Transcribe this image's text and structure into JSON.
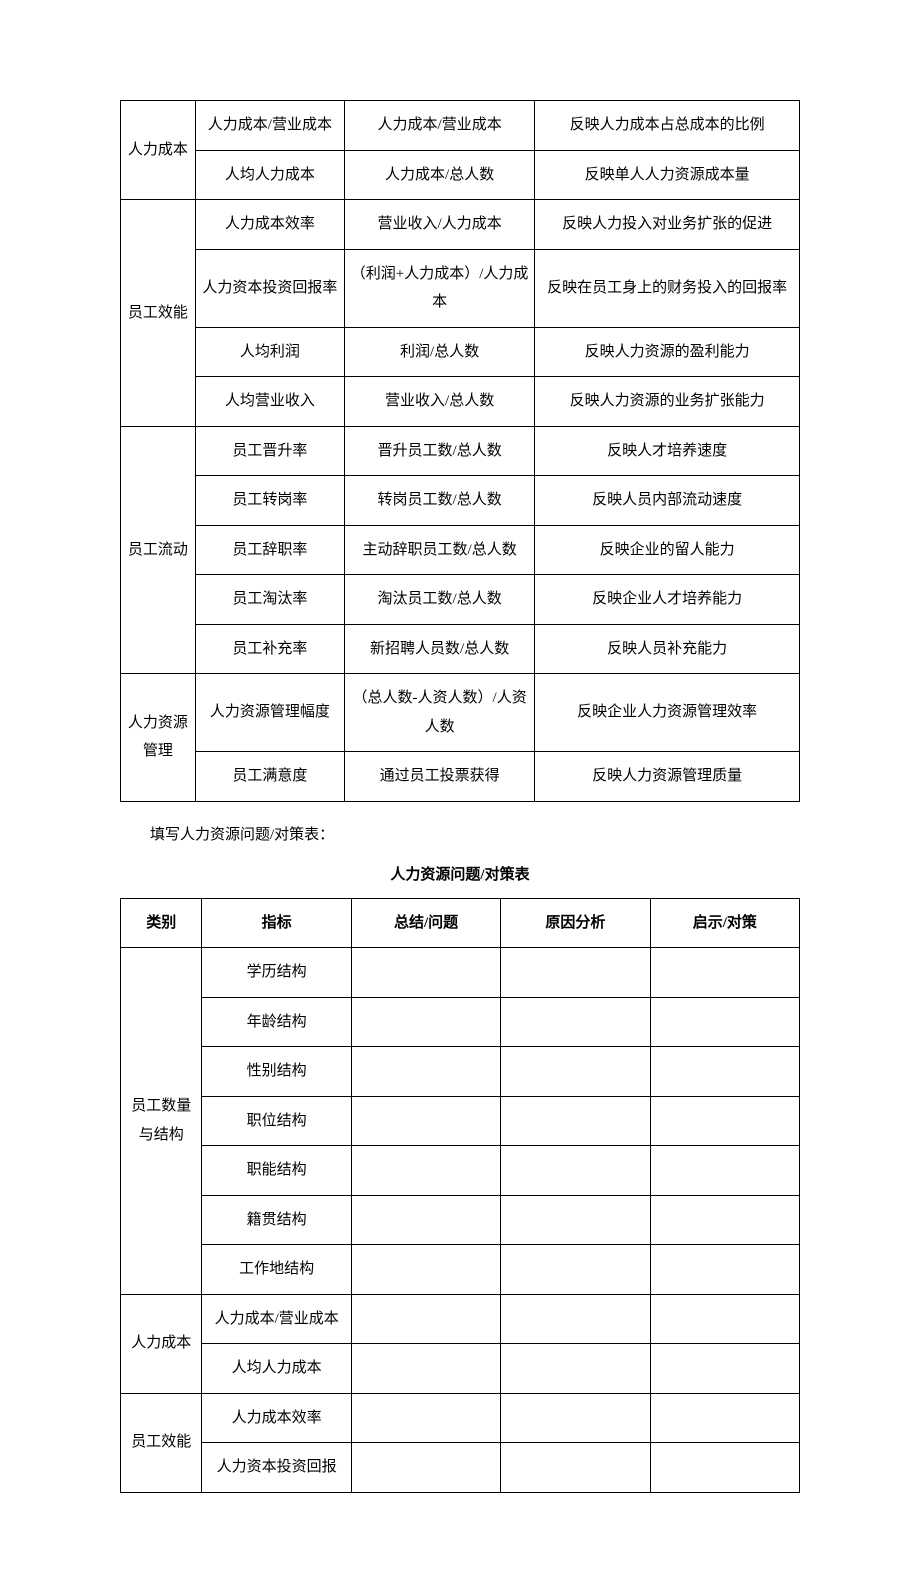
{
  "table1": {
    "rows": [
      {
        "cat": "人力成本",
        "catRowspan": 2,
        "ind": "人力成本/营业成本",
        "formula": "人力成本/营业成本",
        "desc": "反映人力成本占总成本的比例"
      },
      {
        "ind": "人均人力成本",
        "formula": "人力成本/总人数",
        "desc": "反映单人人力资源成本量"
      },
      {
        "cat": "员工效能",
        "catRowspan": 4,
        "ind": "人力成本效率",
        "formula": "营业收入/人力成本",
        "desc": "反映人力投入对业务扩张的促进"
      },
      {
        "ind": "人力资本投资回报率",
        "formula": "（利润+人力成本）/人力成本",
        "desc": "反映在员工身上的财务投入的回报率"
      },
      {
        "ind": "人均利润",
        "formula": "利润/总人数",
        "desc": "反映人力资源的盈利能力"
      },
      {
        "ind": "人均营业收入",
        "formula": "营业收入/总人数",
        "desc": "反映人力资源的业务扩张能力"
      },
      {
        "cat": "员工流动",
        "catRowspan": 5,
        "ind": "员工晋升率",
        "formula": "晋升员工数/总人数",
        "desc": "反映人才培养速度"
      },
      {
        "ind": "员工转岗率",
        "formula": "转岗员工数/总人数",
        "desc": "反映人员内部流动速度"
      },
      {
        "ind": "员工辞职率",
        "formula": "主动辞职员工数/总人数",
        "desc": "反映企业的留人能力"
      },
      {
        "ind": "员工淘汰率",
        "formula": "淘汰员工数/总人数",
        "desc": "反映企业人才培养能力"
      },
      {
        "ind": "员工补充率",
        "formula": "新招聘人员数/总人数",
        "desc": "反映人员补充能力"
      },
      {
        "cat": "人力资源管理",
        "catRowspan": 2,
        "ind": "人力资源管理幅度",
        "formula": "（总人数-人资人数）/人资人数",
        "desc": "反映企业人力资源管理效率"
      },
      {
        "ind": "员工满意度",
        "formula": "通过员工投票获得",
        "desc": "反映人力资源管理质量"
      }
    ]
  },
  "intro": "填写人力资源问题/对策表：",
  "table2": {
    "title": "人力资源问题/对策表",
    "headers": [
      "类别",
      "指标",
      "总结/问题",
      "原因分析",
      "启示/对策"
    ],
    "rows": [
      {
        "cat": "员工数量与结构",
        "catRowspan": 7,
        "ind": "学历结构"
      },
      {
        "ind": "年龄结构"
      },
      {
        "ind": "性别结构"
      },
      {
        "ind": "职位结构"
      },
      {
        "ind": "职能结构"
      },
      {
        "ind": "籍贯结构"
      },
      {
        "ind": "工作地结构"
      },
      {
        "cat": "人力成本",
        "catRowspan": 2,
        "ind": "人力成本/营业成本"
      },
      {
        "ind": "人均人力成本"
      },
      {
        "cat": "员工效能",
        "catRowspan": 2,
        "ind": "人力成本效率"
      },
      {
        "ind": "人力资本投资回报"
      }
    ]
  }
}
